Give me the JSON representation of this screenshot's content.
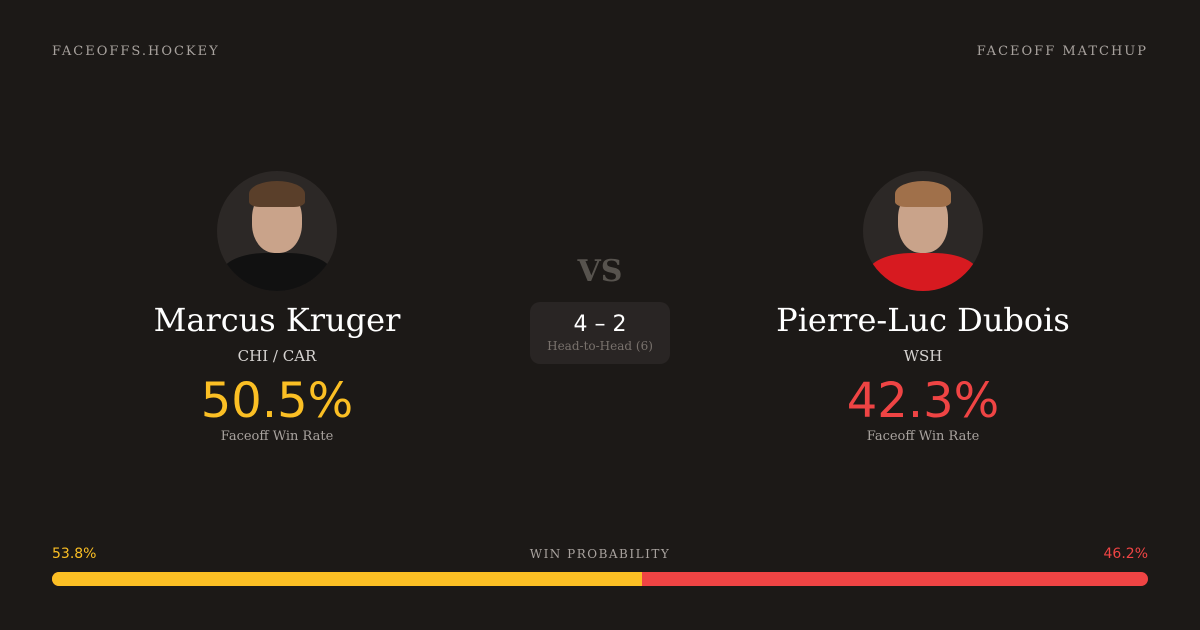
{
  "header": {
    "brand": "FACEOFFS.HOCKEY",
    "section": "FACEOFF MATCHUP"
  },
  "player1": {
    "name": "Marcus Kruger",
    "team": "CHI / CAR",
    "win_rate": "50.5%",
    "win_rate_label": "Faceoff Win Rate",
    "color": "#fbbf24"
  },
  "player2": {
    "name": "Pierre-Luc Dubois",
    "team": "WSH",
    "win_rate": "42.3%",
    "win_rate_label": "Faceoff Win Rate",
    "color": "#ef4444"
  },
  "matchup": {
    "vs": "VS",
    "score": "4 – 2",
    "h2h_label": "Head-to-Head (6)"
  },
  "probability": {
    "label": "WIN PROBABILITY",
    "left": "53.8%",
    "right": "46.2%",
    "left_value": 53.8
  }
}
